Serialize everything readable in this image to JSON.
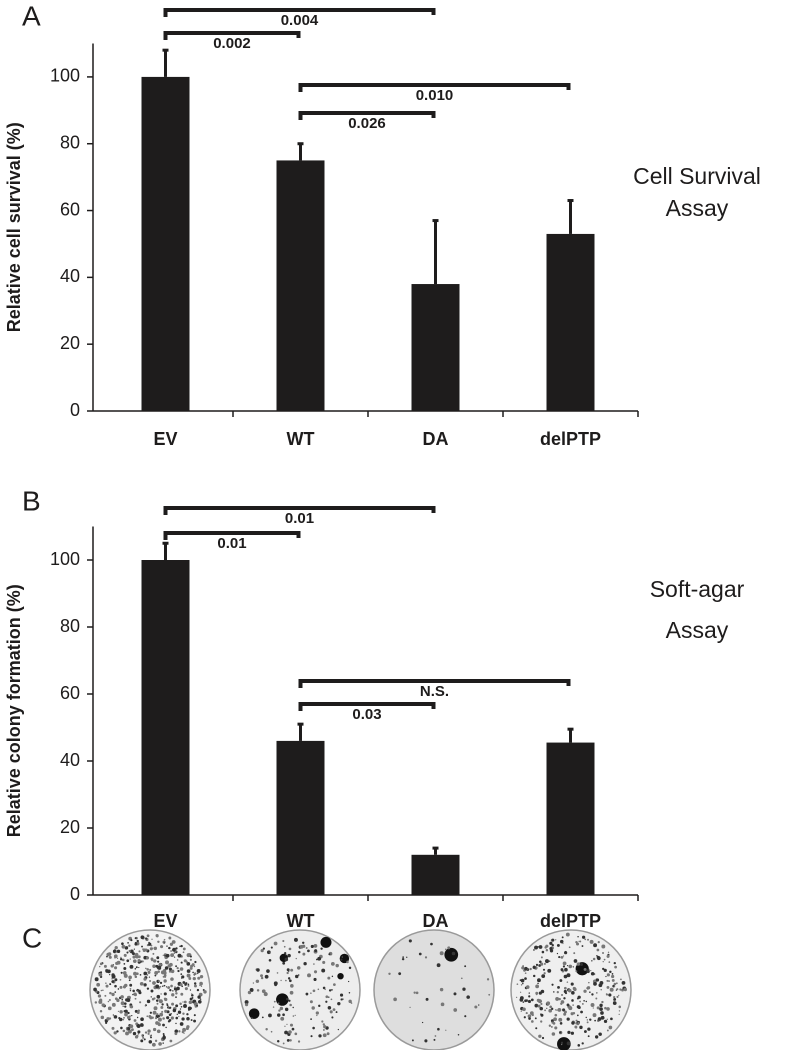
{
  "chart_data": [
    {
      "type": "bar",
      "panel_label": "A",
      "y_label": "Relative cell survival (%)",
      "side_label": [
        "Cell Survival",
        "Assay"
      ],
      "categories": [
        "EV",
        "WT",
        "DA",
        "delPTP"
      ],
      "values": [
        100,
        75,
        38,
        53
      ],
      "errors": [
        8,
        5,
        19,
        10
      ],
      "color": "#1e1c1c",
      "ylim": [
        0,
        110
      ],
      "yticks": [
        0,
        20,
        40,
        60,
        80,
        100
      ],
      "brackets": [
        {
          "from": "EV",
          "to": "DA",
          "label": "0.004"
        },
        {
          "from": "EV",
          "to": "WT",
          "label": "0.002"
        },
        {
          "from": "WT",
          "to": "delPTP",
          "label": "0.010"
        },
        {
          "from": "WT",
          "to": "DA",
          "label": "0.026"
        }
      ]
    },
    {
      "type": "bar",
      "panel_label": "B",
      "y_label": "Relative colony formation (%)",
      "side_label": [
        "Soft-agar",
        "Assay"
      ],
      "categories": [
        "EV",
        "WT",
        "DA",
        "delPTP"
      ],
      "values": [
        100,
        46,
        12,
        45.5
      ],
      "errors": [
        5,
        5,
        2,
        4
      ],
      "color": "#1e1c1c",
      "ylim": [
        0,
        110
      ],
      "yticks": [
        0,
        20,
        40,
        60,
        80,
        100
      ],
      "brackets": [
        {
          "from": "EV",
          "to": "DA",
          "label": "0.01"
        },
        {
          "from": "EV",
          "to": "WT",
          "label": "0.01"
        },
        {
          "from": "WT",
          "to": "delPTP",
          "label": "N.S."
        },
        {
          "from": "WT",
          "to": "DA",
          "label": "0.03"
        }
      ]
    }
  ],
  "panel_c": {
    "label": "C"
  }
}
